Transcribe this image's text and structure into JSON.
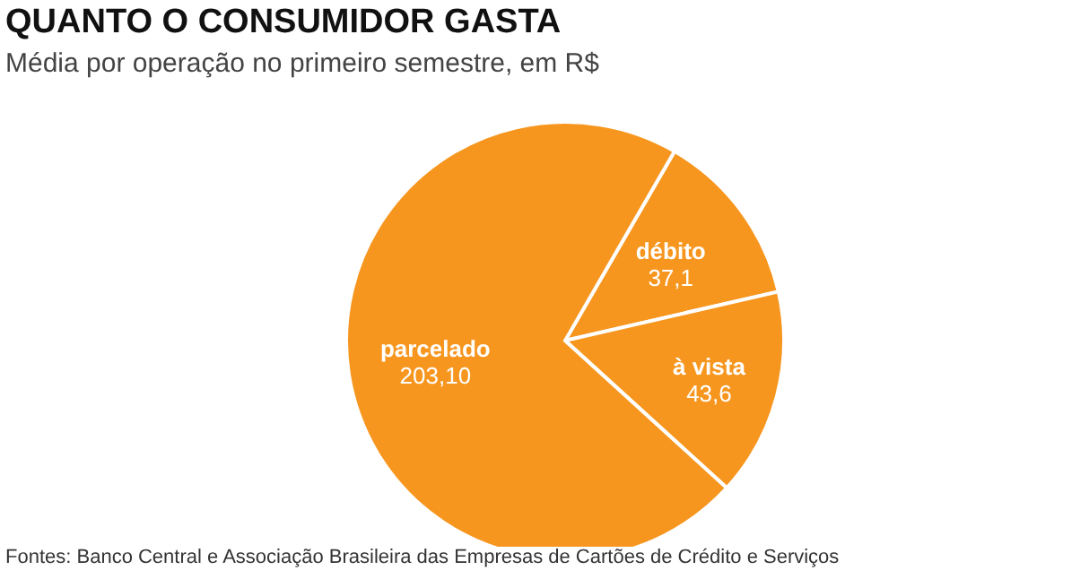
{
  "chart_data": {
    "type": "pie",
    "title": "QUANTO O CONSUMIDOR GASTA",
    "subtitle": "Média por operação no primeiro semestre, em R$",
    "categories": [
      "débito",
      "à vista",
      "parcelado"
    ],
    "values": [
      37.1,
      43.6,
      203.1
    ],
    "value_labels": [
      "37,1",
      "43,6",
      "203,10"
    ],
    "colors": [
      "#f7961f",
      "#f7961f",
      "#f7961f"
    ],
    "annotations": [
      "Fontes: Banco Central e Associação Brasileira das Empresas de Cartões de Crédito e Serviços"
    ]
  }
}
